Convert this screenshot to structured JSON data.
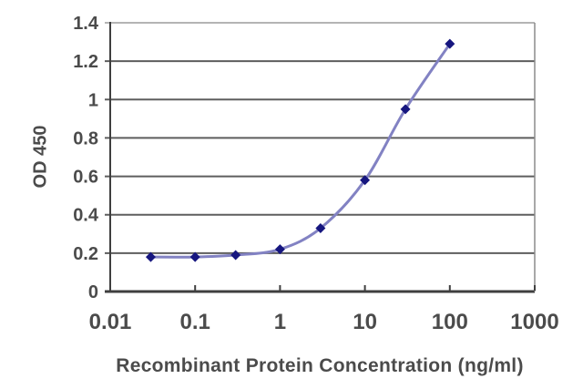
{
  "chart_data": {
    "type": "line",
    "title": "",
    "xlabel": "Recombinant Protein Concentration (ng/ml)",
    "ylabel": "OD 450",
    "x_scale": "log",
    "xlim": [
      0.01,
      1000
    ],
    "ylim": [
      0,
      1.4
    ],
    "x_ticks": [
      "0.01",
      "0.1",
      "1",
      "10",
      "100",
      "1000"
    ],
    "y_ticks": [
      "0",
      "0.2",
      "0.4",
      "0.6",
      "0.8",
      "1",
      "1.2",
      "1.4"
    ],
    "grid": "horizontal-on",
    "legend": "none",
    "marker_shape": "diamond",
    "x": [
      0.03,
      0.1,
      0.3,
      1,
      3,
      10,
      30,
      100
    ],
    "y": [
      0.18,
      0.18,
      0.19,
      0.22,
      0.33,
      0.58,
      0.95,
      1.29
    ],
    "colors": {
      "line": "#8282c3",
      "marker": "#16167f",
      "axis": "#3f3f3f",
      "gridline": "#5e5e5e",
      "gridline_top": "#b4b4b4",
      "border_right": "#8c8c8c",
      "text": "#4b4b4b",
      "background": "#ffffff"
    }
  }
}
